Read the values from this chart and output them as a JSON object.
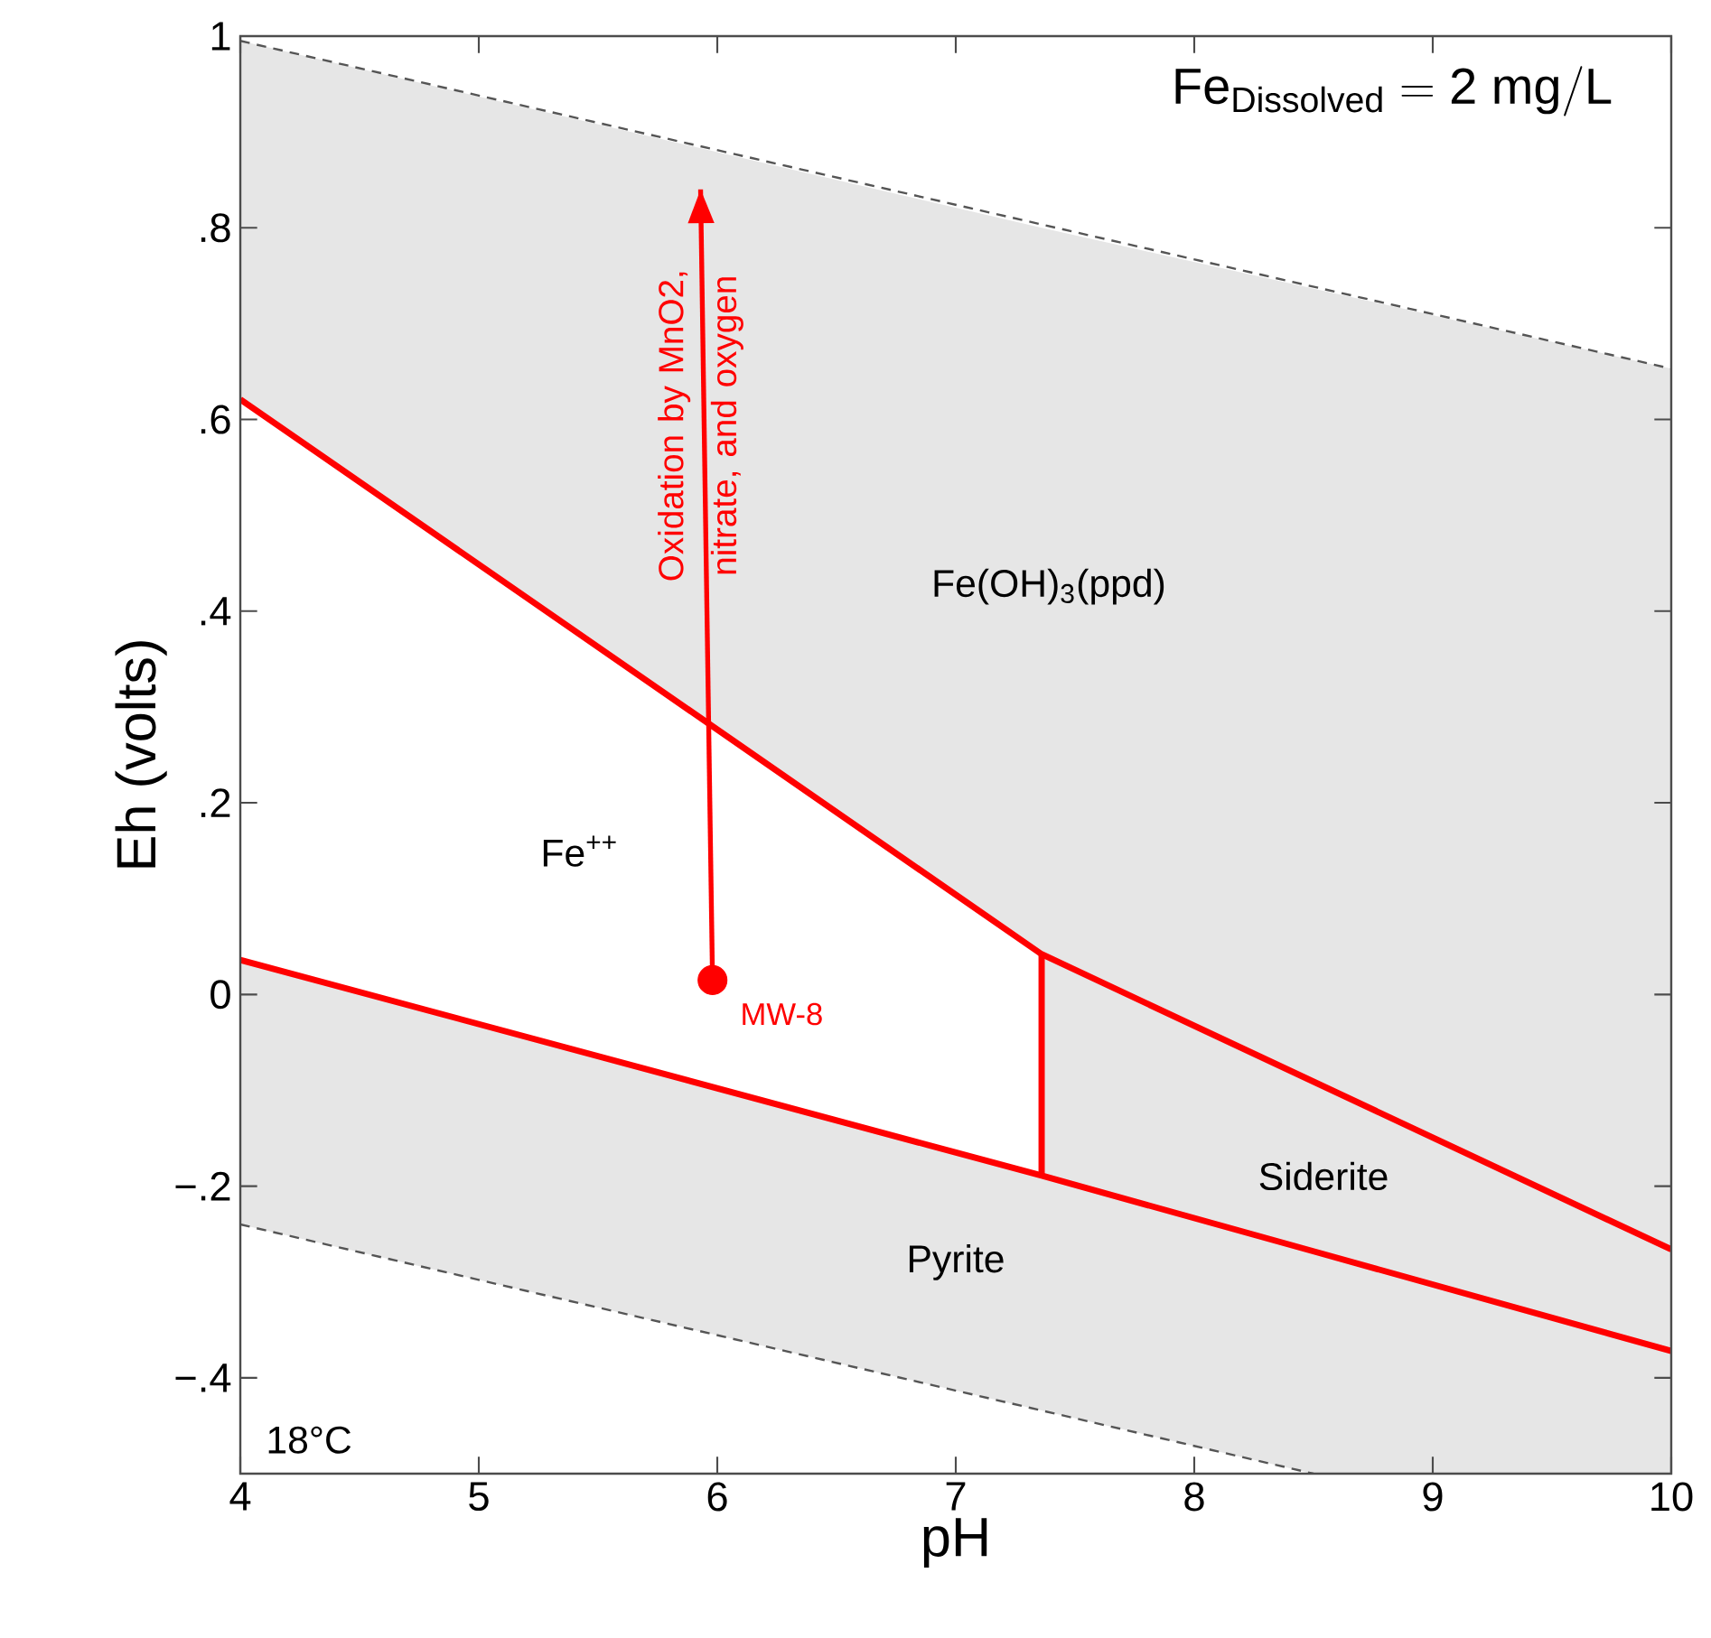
{
  "chart_data": {
    "type": "line",
    "xlabel": "pH",
    "ylabel": "Eh (volts)",
    "xlim": [
      4,
      10
    ],
    "ylim": [
      -0.5,
      1
    ],
    "xticks": [
      4,
      5,
      6,
      7,
      8,
      9,
      10
    ],
    "yticks": [
      {
        "value": -0.4,
        "label": "−.4"
      },
      {
        "value": -0.2,
        "label": "−.2"
      },
      0,
      {
        "value": 0.2,
        "label": ".2"
      },
      {
        "value": 0.4,
        "label": ".4"
      },
      {
        "value": 0.6,
        "label": ".6"
      },
      {
        "value": 0.8,
        "label": ".8"
      },
      1
    ],
    "series": [
      {
        "color": "#555555",
        "line_style": "dashed",
        "x": [
          4,
          10
        ],
        "values": [
          0.995,
          0.653
        ]
      },
      {
        "color": "#555555",
        "line_style": "dashed",
        "x": [
          4,
          8.5
        ],
        "values": [
          -0.24,
          -0.5
        ]
      },
      {
        "color": "#ff0000",
        "x": [
          4,
          7.36,
          10
        ],
        "values": [
          0.621,
          0.042,
          -0.266
        ],
        "lower": [
          0.621,
          0.042,
          -0.266
        ],
        "upper": [
          0.995,
          0.8,
          0.653
        ]
      },
      {
        "color": "#ff0000",
        "x": [
          4,
          7.36,
          7.36,
          8.5,
          10
        ],
        "values": [
          0.036,
          -0.189,
          -0.189,
          -0.268,
          -0.372
        ],
        "lower": [
          -0.24,
          -0.434,
          -0.434,
          -0.5,
          -0.5
        ],
        "upper": [
          0.036,
          -0.189,
          0.042,
          -0.091,
          -0.266
        ]
      },
      {
        "color": "#ff0000",
        "x": [
          7.36,
          7.36
        ],
        "values": [
          -0.189,
          0.042
        ]
      },
      {
        "color": "#ff0000",
        "x": [
          5.98,
          5.93
        ],
        "values": [
          0.015,
          0.84
        ]
      },
      {
        "type": "scatter",
        "name": "MW-8",
        "color": "#ff0000",
        "x": [
          5.98
        ],
        "values": [
          0.015
        ]
      }
    ],
    "annotations": [
      "Oxidation by MnO2, nitrate, and oxygen",
      "Fe(OH)$_{3}$(ppd)",
      "Fe$^{++}$",
      "Siderite",
      "Pyrite",
      "18°C",
      "\\mathrm{Fe}_{\\mathrm{Dissolved}} = \\mathrm{2\\ mg/L}"
    ]
  }
}
